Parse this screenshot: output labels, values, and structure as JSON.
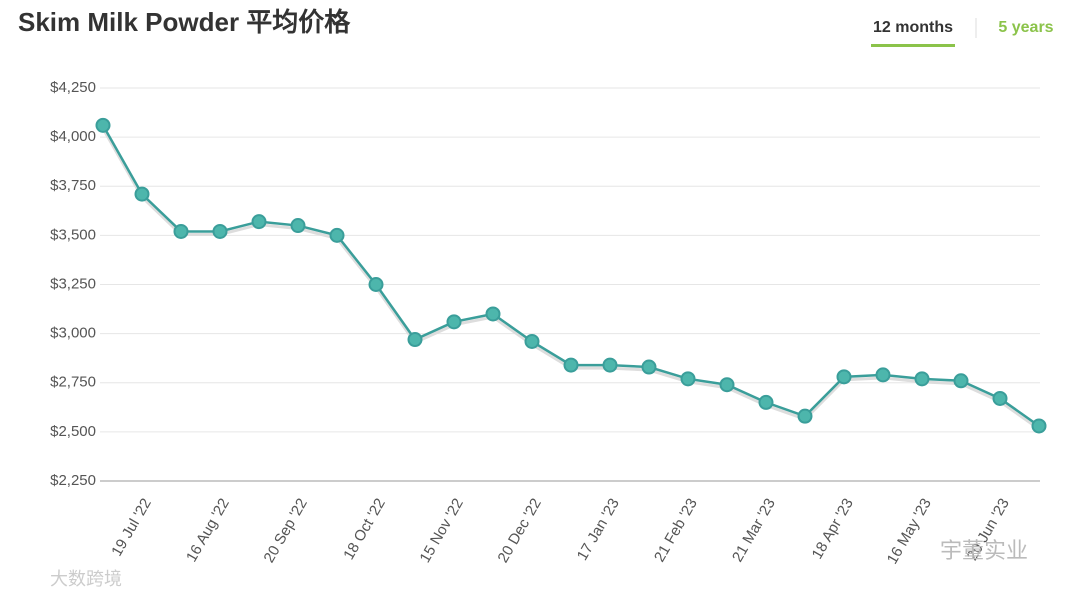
{
  "chart_data": {
    "type": "line",
    "title": "Skim Milk Powder 平均价格",
    "tabs": [
      "12 months",
      "5 years"
    ],
    "categories": [
      null,
      "19 Jul '22",
      null,
      "16 Aug '22",
      null,
      "20 Sep '22",
      null,
      "18 Oct '22",
      null,
      "15 Nov '22",
      null,
      "20 Dec '22",
      null,
      "17 Jan '23",
      null,
      "21 Feb '23",
      null,
      "21 Mar '23",
      null,
      "18 Apr '23",
      null,
      "16 May '23",
      null,
      "20 Jun '23",
      null
    ],
    "series": [
      {
        "color": "#3a9e9a",
        "values": [
          4060,
          3710,
          3520,
          3520,
          3570,
          3550,
          3500,
          3250,
          2970,
          3060,
          3100,
          2960,
          2840,
          2840,
          2830,
          2770,
          2740,
          2650,
          2580,
          2780,
          2790,
          2770,
          2760,
          2670,
          2530
        ]
      }
    ],
    "ylim": [
      2250,
      4250
    ],
    "yticks": [
      {
        "value": 2250,
        "label": "$2,250"
      },
      {
        "value": 2500,
        "label": "$2,500"
      },
      {
        "value": 2750,
        "label": "$2,750"
      },
      {
        "value": 3000,
        "label": "$3,000"
      },
      {
        "value": 3250,
        "label": "$3,250"
      },
      {
        "value": 3500,
        "label": "$3,500"
      },
      {
        "value": 3750,
        "label": "$3,750"
      },
      {
        "value": 4000,
        "label": "$4,000"
      },
      {
        "value": 4250,
        "label": "$4,250"
      }
    ],
    "grid": true
  },
  "watermarks": [
    "大数跨境",
    "宇董实业"
  ]
}
